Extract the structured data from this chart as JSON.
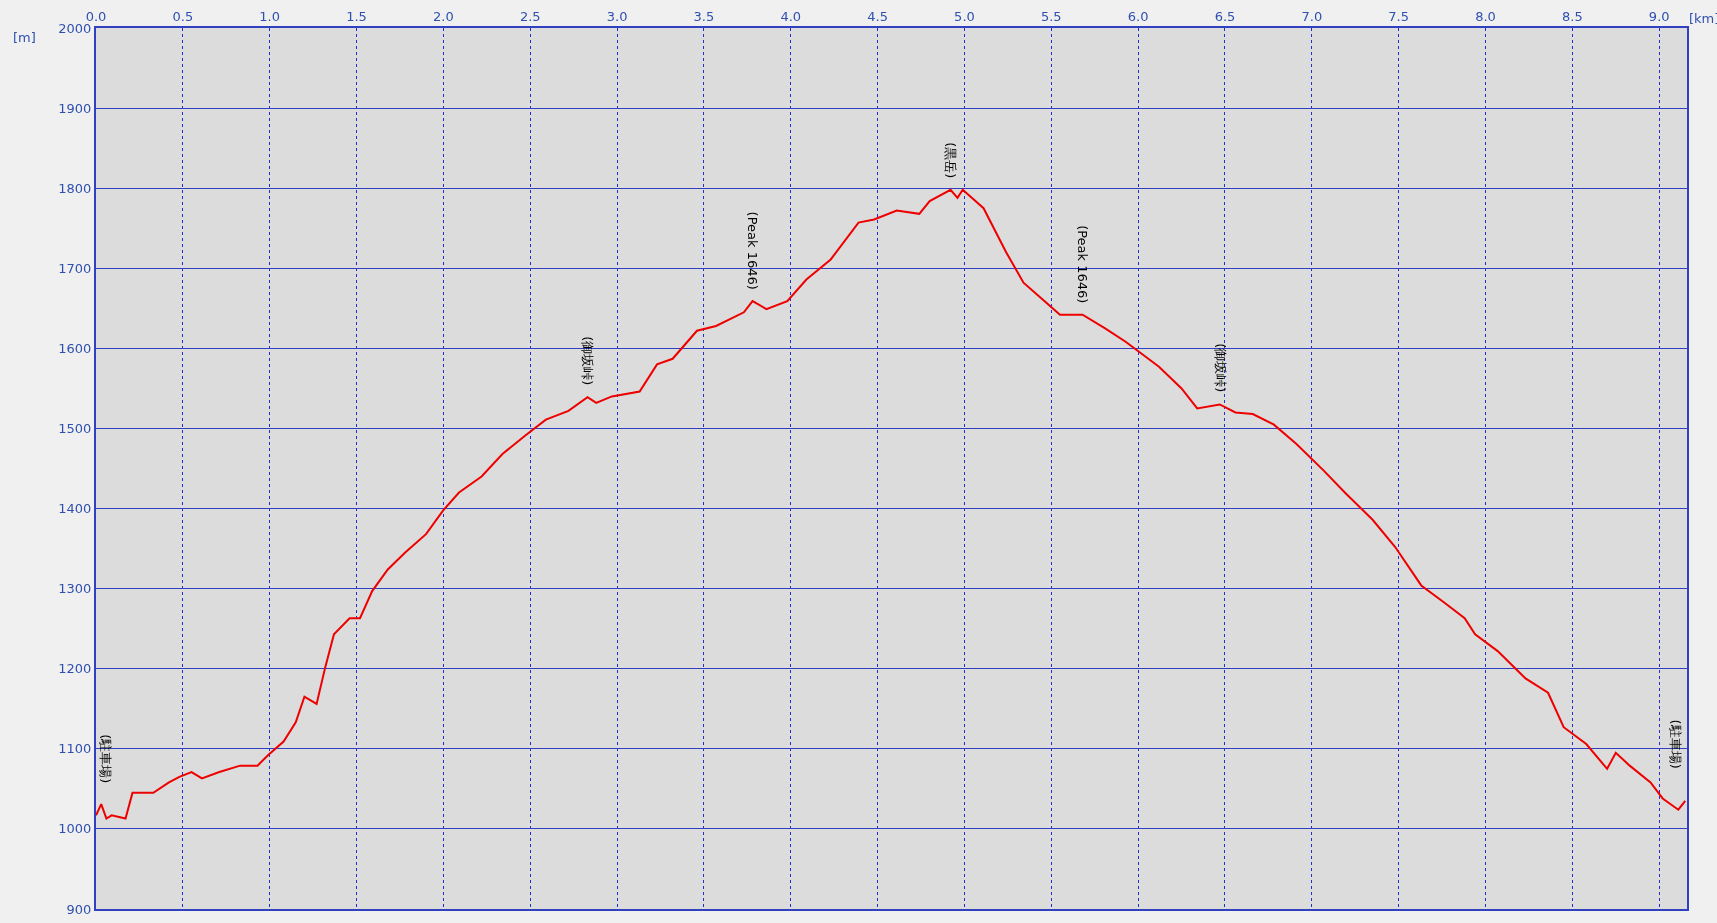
{
  "chart_data": {
    "type": "line",
    "xlabel": "[km]",
    "ylabel": "[m]",
    "x": [
      0,
      0.03,
      0.06,
      0.09,
      0.17,
      0.21,
      0.33,
      0.42,
      0.48,
      0.55,
      0.61,
      0.71,
      0.83,
      0.93,
      0.99,
      1.08,
      1.15,
      1.2,
      1.27,
      1.32,
      1.37,
      1.46,
      1.52,
      1.59,
      1.68,
      1.78,
      1.9,
      2.0,
      2.09,
      2.22,
      2.34,
      2.47,
      2.59,
      2.72,
      2.83,
      2.88,
      2.97,
      3.13,
      3.23,
      3.32,
      3.46,
      3.57,
      3.73,
      3.78,
      3.86,
      3.98,
      4.09,
      4.23,
      4.39,
      4.48,
      4.61,
      4.74,
      4.8,
      4.92,
      4.96,
      4.99,
      5.11,
      5.24,
      5.34,
      5.46,
      5.55,
      5.68,
      5.81,
      5.93,
      6.12,
      6.25,
      6.34,
      6.47,
      6.56,
      6.66,
      6.78,
      6.91,
      7.07,
      7.19,
      7.35,
      7.48,
      7.63,
      7.76,
      7.88,
      7.94,
      8.07,
      8.23,
      8.36,
      8.45,
      8.58,
      8.7,
      8.75,
      8.83,
      8.95,
      9.02,
      9.11,
      9.15
    ],
    "series": [
      {
        "color": "#ee0000",
        "values": [
          1017,
          1031,
          1013,
          1017,
          1013,
          1045,
          1045,
          1058,
          1065,
          1071,
          1063,
          1071,
          1079,
          1079,
          1092,
          1109,
          1133,
          1165,
          1156,
          1202,
          1243,
          1263,
          1263,
          1297,
          1324,
          1345,
          1368,
          1398,
          1420,
          1440,
          1468,
          1491,
          1511,
          1522,
          1539,
          1532,
          1540,
          1546,
          1580,
          1587,
          1622,
          1628,
          1645,
          1659,
          1649,
          1659,
          1686,
          1711,
          1757,
          1761,
          1772,
          1768,
          1784,
          1798,
          1788,
          1798,
          1775,
          1720,
          1682,
          1659,
          1642,
          1642,
          1625,
          1608,
          1577,
          1550,
          1525,
          1530,
          1520,
          1518,
          1505,
          1481,
          1447,
          1420,
          1386,
          1352,
          1304,
          1283,
          1263,
          1243,
          1222,
          1188,
          1170,
          1127,
          1106,
          1075,
          1095,
          1079,
          1058,
          1038,
          1024,
          1035
        ]
      }
    ],
    "xlim": [
      0,
      9.16
    ],
    "ylim": [
      900,
      2000
    ],
    "xticks": [
      {
        "value": 0,
        "label": "0.0"
      },
      {
        "value": 0.5,
        "label": "0.5"
      },
      {
        "value": 1,
        "label": "1.0"
      },
      {
        "value": 1.5,
        "label": "1.5"
      },
      {
        "value": 2,
        "label": "2.0"
      },
      {
        "value": 2.5,
        "label": "2.5"
      },
      {
        "value": 3,
        "label": "3.0"
      },
      {
        "value": 3.5,
        "label": "3.5"
      },
      {
        "value": 4,
        "label": "4.0"
      },
      {
        "value": 4.5,
        "label": "4.5"
      },
      {
        "value": 5,
        "label": "5.0"
      },
      {
        "value": 5.5,
        "label": "5.5"
      },
      {
        "value": 6,
        "label": "6.0"
      },
      {
        "value": 6.5,
        "label": "6.5"
      },
      {
        "value": 7,
        "label": "7.0"
      },
      {
        "value": 7.5,
        "label": "7.5"
      },
      {
        "value": 8,
        "label": "8.0"
      },
      {
        "value": 8.5,
        "label": "8.5"
      },
      {
        "value": 9,
        "label": "9.0"
      }
    ],
    "yticks": [
      900,
      1000,
      1100,
      1200,
      1300,
      1400,
      1500,
      1600,
      1700,
      1800,
      1900,
      2000
    ],
    "annotations": [
      {
        "text": "(駐車場)",
        "x": 0,
        "y": 1017
      },
      {
        "text": "(御坂峠)",
        "x": 2.83,
        "y": 1539
      },
      {
        "text": "(Peak 1646)",
        "x": 3.78,
        "y": 1659
      },
      {
        "text": "(黒岳)",
        "x": 4.92,
        "y": 1798
      },
      {
        "text": "(Peak 1646)",
        "x": 5.68,
        "y": 1642
      },
      {
        "text": "(御坂峠)",
        "x": 6.47,
        "y": 1530
      },
      {
        "text": "(駐車場)",
        "x": 9.15,
        "y": 1035
      }
    ],
    "grid": true,
    "marker": "none",
    "line_style": "solid"
  }
}
